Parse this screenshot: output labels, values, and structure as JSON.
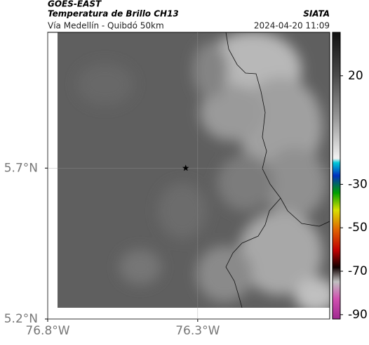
{
  "header": {
    "satellite": "GOES-EAST",
    "product": "Temperatura de Brillo CH13",
    "source": "SIATA",
    "route": "Vía Medellín - Quibdó 50km",
    "timestamp": "2024-04-20 11:09"
  },
  "map": {
    "xlim": [
      -76.8,
      -75.86
    ],
    "ylim": [
      5.2,
      6.15
    ],
    "xticks": [
      {
        "value": -76.8,
        "label": "76.8°W"
      },
      {
        "value": -76.3,
        "label": "76.3°W"
      }
    ],
    "yticks": [
      {
        "value": 5.2,
        "label": "5.2°N"
      },
      {
        "value": 5.7,
        "label": "5.7°N"
      }
    ],
    "grid": true,
    "marker": {
      "lon": -76.34,
      "lat": 5.7
    }
  },
  "colorbar": {
    "lim": [
      -92,
      40
    ],
    "ticks": [
      20,
      -30,
      -50,
      -70,
      -90
    ]
  }
}
